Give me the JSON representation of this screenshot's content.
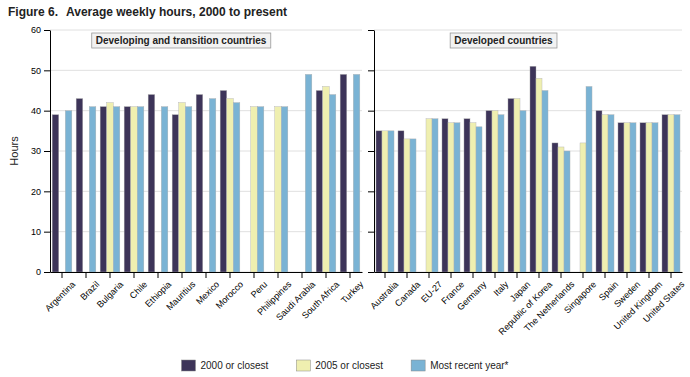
{
  "chart_data": [
    {
      "type": "bar",
      "title": "Figure 6.",
      "subtitle": "Average weekly hours, 2000 to present",
      "annotations": [
        "Developing and transition countries"
      ],
      "ylabel": "Hours",
      "categories": [
        "Argentina",
        "Brazil",
        "Bulgaria",
        "Chile",
        "Ethiopia",
        "Mauritius",
        "Mexico",
        "Morocco",
        "Peru",
        "Philippines",
        "Saudi Arabia",
        "South Africa",
        "Turkey"
      ],
      "series": [
        {
          "name": "2000 or closest",
          "color": "#3d3459",
          "values": [
            39,
            43,
            41,
            41,
            44,
            39,
            44,
            45,
            null,
            null,
            null,
            45,
            49
          ]
        },
        {
          "name": "2005 or closest",
          "color": "#efefb0",
          "values": [
            null,
            null,
            42,
            41,
            null,
            42,
            null,
            43,
            41,
            41,
            null,
            46,
            null
          ]
        },
        {
          "name": "Most recent year*",
          "color": "#7ab3d4",
          "values": [
            40,
            41,
            41,
            41,
            41,
            41,
            43,
            42,
            41,
            41,
            49,
            44,
            49
          ]
        }
      ],
      "ylim": [
        0,
        60
      ],
      "yticks": [
        0,
        10,
        20,
        30,
        40,
        50,
        60
      ],
      "grid": true,
      "legend": "bottom"
    },
    {
      "type": "bar",
      "annotations": [
        "Developed countries"
      ],
      "categories": [
        "Australia",
        "Canada",
        "EU-27",
        "France",
        "Germany",
        "Italy",
        "Japan",
        "Republic of Korea",
        "The Netherlands",
        "Singapore",
        "Spain",
        "Sweden",
        "United Kingdom",
        "United States"
      ],
      "series": [
        {
          "color": "#3d3459",
          "values": [
            35,
            35,
            null,
            38,
            38,
            40,
            43,
            51,
            32,
            null,
            40,
            37,
            37,
            39
          ]
        },
        {
          "color": "#efefb0",
          "values": [
            35,
            33,
            38,
            37,
            37,
            40,
            43,
            48,
            31,
            32,
            39,
            37,
            37,
            39
          ]
        },
        {
          "color": "#7ab3d4",
          "values": [
            35,
            33,
            38,
            37,
            36,
            39,
            40,
            45,
            30,
            46,
            39,
            37,
            37,
            39
          ]
        }
      ],
      "ylim": [
        0,
        60
      ],
      "yticks": [
        0,
        10,
        20,
        30,
        40,
        50,
        60
      ],
      "grid": true,
      "tick_labels": "x"
    }
  ]
}
